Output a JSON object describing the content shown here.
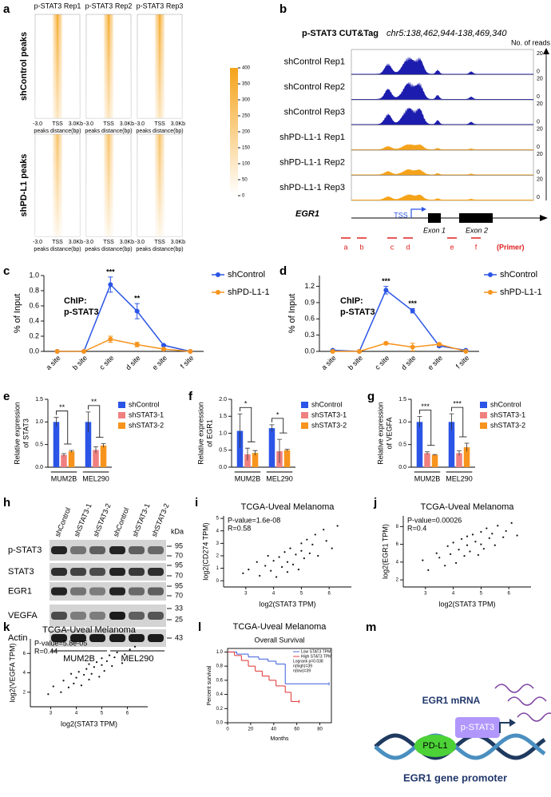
{
  "panel_a": {
    "panel_label": "a",
    "columns": [
      "p-STAT3 Rep1",
      "p-STAT3 Rep2",
      "p-STAT3 Rep3"
    ],
    "rows": [
      "shControl peaks",
      "shPD-L1 peaks"
    ],
    "x_labels": [
      "-3.0",
      "TSS",
      "3.0Kb"
    ],
    "x_title": "peaks distance(bp)",
    "colorbar": {
      "lim": [
        0,
        400
      ],
      "ticks": [
        0,
        50,
        100,
        150,
        200,
        250,
        300,
        350,
        400
      ],
      "colors": [
        "#ffffff",
        "#f5a31a"
      ]
    }
  },
  "panel_b": {
    "panel_label": "b",
    "title": "p-STAT3 CUT&Tag",
    "locus": "chr5:138,462,944-138,469,340",
    "scale_title": "No. of reads",
    "track_range": [
      0,
      20
    ],
    "tracks": [
      {
        "name": "shControl Rep1",
        "color": "#1c1cae"
      },
      {
        "name": "shControl Rep2",
        "color": "#1c1cae"
      },
      {
        "name": "shControl Rep3",
        "color": "#1c1cae"
      },
      {
        "name": "shPD-L1-1 Rep1",
        "color": "#f5a31a"
      },
      {
        "name": "shPD-L1-1 Rep2",
        "color": "#f5a31a"
      },
      {
        "name": "shPD-L1-1 Rep3",
        "color": "#f5a31a"
      }
    ],
    "gene": "EGR1",
    "tss": "TSS",
    "exons": [
      "Exon 1",
      "Exon 2"
    ],
    "primers": [
      "a",
      "b",
      "c",
      "d",
      "e",
      "f"
    ],
    "primer_title": "(Primer)"
  },
  "panel_h": {
    "panel_label": "h",
    "lanes": [
      "shControl",
      "shSTAT3-1",
      "shSTAT3-2",
      "shControl",
      "shSTAT3-1",
      "shSTAT3-2"
    ],
    "kda": "kDa",
    "rows": [
      "p-STAT3",
      "STAT3",
      "EGR1",
      "VEGFA",
      "Actin"
    ],
    "markers": [
      95,
      70,
      95,
      70,
      95,
      70,
      33,
      25,
      43
    ],
    "groups": [
      "MUM2B",
      "MEL290"
    ]
  },
  "panel_m": {
    "panel_label": "m",
    "mrna": "EGR1 mRNA",
    "proteins": [
      "PD-L1",
      "p-STAT3"
    ],
    "promoter": "EGR1 gene promoter"
  },
  "chart_data": [
    {
      "panel_label": "c",
      "type": "line",
      "title": [
        "ChIP:",
        "p-STAT3"
      ],
      "y_label": [
        "% of Input"
      ],
      "categories": [
        "a site",
        "b site",
        "c site",
        "d site",
        "e site",
        "f site"
      ],
      "series": [
        {
          "name": "shControl",
          "color": "#2b55e6",
          "values": [
            0,
            0,
            0.88,
            0.53,
            0.08,
            0
          ],
          "errors": [
            0,
            0,
            0.1,
            0.1,
            0.01,
            0
          ]
        },
        {
          "name": "shPD-L1-1",
          "color": "#f7941d",
          "values": [
            0,
            0,
            0.16,
            0.09,
            0.03,
            0
          ],
          "errors": [
            0,
            0,
            0.04,
            0.03,
            0.01,
            0
          ]
        }
      ],
      "ylim": [
        0,
        1.0
      ],
      "yticks": [
        {
          "value": 0,
          "label": "0.0"
        },
        0.2,
        0.4,
        0.6,
        0.8,
        {
          "value": 1,
          "label": "1.0"
        }
      ],
      "annotations": [
        {
          "text": "***",
          "x": "c site"
        },
        {
          "text": "**",
          "x": "d site"
        }
      ]
    },
    {
      "panel_label": "d",
      "type": "line",
      "title": [
        "ChIP:",
        "p-STAT3"
      ],
      "y_label": [
        "% of Input"
      ],
      "categories": [
        "a site",
        "b site",
        "c site",
        "d site",
        "e site",
        "f site"
      ],
      "series": [
        {
          "name": "shControl",
          "color": "#2b55e6",
          "values": [
            0.02,
            0,
            1.13,
            0.75,
            0.1,
            0.02
          ],
          "errors": [
            0.01,
            0,
            0.07,
            0.04,
            0.02,
            0.01
          ]
        },
        {
          "name": "shPD-L1-1",
          "color": "#f7941d",
          "values": [
            0,
            0,
            0.15,
            0.08,
            0.13,
            0
          ],
          "errors": [
            0,
            0,
            0.02,
            0.07,
            0.02,
            0
          ]
        }
      ],
      "ylim": [
        0,
        1.4
      ],
      "yticks": [
        {
          "value": 0,
          "label": "0.0"
        },
        0.3,
        0.6,
        0.9,
        1.2
      ],
      "annotations": [
        {
          "text": "***",
          "x": "c site"
        },
        {
          "text": "***",
          "x": "d site"
        }
      ]
    },
    {
      "panel_label": "e",
      "type": "bar",
      "y_label": [
        "Relative expression",
        "of STAT3"
      ],
      "categories": [
        "MUM2B",
        "MEL290"
      ],
      "series": [
        {
          "name": "shControl",
          "color": "#2b55e6",
          "values": [
            1.0,
            1.0
          ],
          "errors": [
            0.1,
            0.22
          ]
        },
        {
          "name": "shSTAT3-1",
          "color": "#f08080",
          "values": [
            0.27,
            0.38
          ],
          "errors": [
            0.03,
            0.07
          ]
        },
        {
          "name": "shSTAT3-2",
          "color": "#f7941d",
          "values": [
            0.35,
            0.48
          ],
          "errors": [
            0.02,
            0.04
          ]
        }
      ],
      "ylim": [
        0,
        1.5
      ],
      "yticks": [
        {
          "value": 0,
          "label": "0.0"
        },
        0.5,
        {
          "value": 1,
          "label": "1.0"
        },
        1.5
      ],
      "annotations": [
        {
          "text": "**",
          "x": "MUM2B"
        },
        {
          "text": "**",
          "x": "MEL290"
        }
      ]
    },
    {
      "panel_label": "f",
      "type": "bar",
      "y_label": [
        "Relative expression",
        "of EGR1"
      ],
      "categories": [
        "MUM2B",
        "MEL290"
      ],
      "series": [
        {
          "name": "shControl",
          "color": "#2b55e6",
          "values": [
            1.07,
            1.15
          ],
          "errors": [
            0.5,
            0.1
          ]
        },
        {
          "name": "shSTAT3-1",
          "color": "#f08080",
          "values": [
            0.38,
            0.47
          ],
          "errors": [
            0.18,
            0.35
          ]
        },
        {
          "name": "shSTAT3-2",
          "color": "#f7941d",
          "values": [
            0.42,
            0.5
          ],
          "errors": [
            0.07,
            0.03
          ]
        }
      ],
      "ylim": [
        0,
        2.0
      ],
      "yticks": [
        {
          "value": 0,
          "label": "0.0"
        },
        0.5,
        {
          "value": 1,
          "label": "1.0"
        },
        1.5,
        {
          "value": 2,
          "label": "2.0"
        }
      ],
      "annotations": [
        {
          "text": "*",
          "x": "MUM2B"
        },
        {
          "text": "*",
          "x": "MEL290"
        }
      ]
    },
    {
      "panel_label": "g",
      "type": "bar",
      "y_label": [
        "Relative expression",
        "of VEGFA"
      ],
      "categories": [
        "MUM2B",
        "MEL290"
      ],
      "series": [
        {
          "name": "shControl",
          "color": "#2b55e6",
          "values": [
            1.0,
            1.0
          ],
          "errors": [
            0.12,
            0.18
          ]
        },
        {
          "name": "shSTAT3-1",
          "color": "#f08080",
          "values": [
            0.31,
            0.31
          ],
          "errors": [
            0.03,
            0.05
          ]
        },
        {
          "name": "shSTAT3-2",
          "color": "#f7941d",
          "values": [
            0.27,
            0.44
          ],
          "errors": [
            0.01,
            0.09
          ]
        }
      ],
      "ylim": [
        0,
        1.5
      ],
      "yticks": [
        {
          "value": 0,
          "label": "0.0"
        },
        0.5,
        {
          "value": 1,
          "label": "1.0"
        },
        1.5
      ],
      "annotations": [
        {
          "text": "***",
          "x": "MUM2B"
        },
        {
          "text": "***",
          "x": "MEL290"
        }
      ]
    },
    {
      "panel_label": "i",
      "type": "scatter",
      "title": "TCGA-Uveal Melanoma",
      "annotations": [
        "P-value=1.6e-08",
        "R=0.58"
      ],
      "x_label": "log2(STAT3 TPM)",
      "y_label": "log2(CD274 TPM)",
      "color": "#111111",
      "x": [
        2.9,
        3.1,
        3.4,
        3.5,
        3.7,
        3.8,
        3.9,
        4.0,
        4.1,
        4.2,
        4.3,
        4.4,
        4.5,
        4.5,
        4.6,
        4.7,
        4.8,
        4.9,
        5.0,
        5.0,
        5.1,
        5.2,
        5.3,
        5.4,
        5.5,
        5.6,
        5.8,
        5.9,
        6.1,
        6.3
      ],
      "values": [
        0.6,
        0.9,
        1.5,
        0.4,
        1.2,
        2.0,
        0.8,
        1.6,
        0.3,
        1.9,
        1.1,
        2.3,
        0.7,
        1.5,
        2.6,
        1.3,
        2.1,
        0.9,
        2.4,
        3.0,
        1.8,
        3.3,
        2.2,
        2.9,
        3.7,
        2.0,
        4.1,
        3.2,
        2.6,
        4.4
      ],
      "xlim": [
        2.2,
        6.8
      ],
      "xticks": [
        3,
        4,
        5,
        6
      ],
      "ylim": [
        -0.5,
        5.2
      ],
      "yticks": [
        0,
        1,
        2,
        3,
        4,
        5
      ]
    },
    {
      "panel_label": "j",
      "type": "scatter",
      "title": "TCGA-Uveal Melanoma",
      "annotations": [
        "P-value=0.00026",
        "R=0.4"
      ],
      "x_label": "log2(STAT3 TPM)",
      "y_label": "log2(EGR1 TPM)",
      "color": "#111111",
      "x": [
        2.9,
        3.1,
        3.4,
        3.5,
        3.7,
        3.8,
        3.9,
        4.0,
        4.1,
        4.2,
        4.3,
        4.4,
        4.5,
        4.5,
        4.6,
        4.7,
        4.8,
        4.9,
        5.0,
        5.0,
        5.1,
        5.2,
        5.3,
        5.4,
        5.5,
        5.6,
        5.8,
        5.9,
        6.1,
        6.3
      ],
      "values": [
        4.2,
        3.1,
        5.0,
        4.5,
        3.6,
        5.8,
        4.9,
        6.2,
        3.9,
        5.4,
        6.6,
        4.7,
        5.9,
        6.9,
        5.2,
        7.1,
        6.3,
        4.8,
        7.4,
        6.0,
        5.5,
        7.8,
        6.7,
        7.2,
        5.9,
        8.1,
        6.8,
        7.5,
        8.4,
        7.0
      ],
      "xlim": [
        2.2,
        6.8
      ],
      "xticks": [
        3,
        4,
        5,
        6
      ],
      "ylim": [
        1.2,
        9.2
      ],
      "yticks": [
        2,
        4,
        6,
        8
      ]
    },
    {
      "panel_label": "k",
      "type": "scatter",
      "title": "TCGA-Uveal Melanoma",
      "annotations": [
        "P-value=5.8e-05",
        "R=0.44"
      ],
      "x_label": "log2(STAT3 TPM)",
      "y_label": "log2(VEGFA TPM)",
      "color": "#111111",
      "x": [
        2.9,
        3.1,
        3.4,
        3.5,
        3.7,
        3.8,
        3.9,
        4.0,
        4.1,
        4.2,
        4.3,
        4.4,
        4.5,
        4.5,
        4.6,
        4.7,
        4.8,
        4.9,
        5.0,
        5.0,
        5.1,
        5.2,
        5.3,
        5.4,
        5.5,
        5.6,
        5.8,
        5.9,
        6.1,
        6.3
      ],
      "values": [
        1.8,
        2.6,
        2.0,
        3.2,
        2.5,
        3.9,
        2.9,
        3.5,
        4.1,
        2.7,
        3.8,
        4.4,
        3.3,
        4.9,
        3.9,
        4.6,
        5.1,
        3.6,
        4.8,
        5.5,
        4.2,
        5.2,
        5.8,
        4.7,
        5.6,
        6.1,
        5.0,
        5.9,
        6.4,
        6.7
      ],
      "xlim": [
        2.2,
        6.8
      ],
      "xticks": [
        3,
        4,
        5,
        6
      ],
      "ylim": [
        0.5,
        7.5
      ],
      "yticks": [
        2,
        4,
        6
      ]
    },
    {
      "panel_label": "l",
      "type": "survival",
      "title": "TCGA-Uveal Melanoma",
      "subtitle": "Overall Survival",
      "x_label": "Months",
      "y_label": "Percent survival",
      "series": [
        {
          "name": "Low STAT3 TPM",
          "color": "#3b5bdb",
          "x": [
            0,
            8,
            18,
            27,
            35,
            42,
            50,
            88
          ],
          "values": [
            1,
            0.97,
            0.93,
            0.9,
            0.87,
            0.83,
            0.55,
            0.55
          ]
        },
        {
          "name": "High STAT3 TPM",
          "color": "#e03131",
          "x": [
            0,
            6,
            12,
            18,
            24,
            30,
            36,
            42,
            50,
            55,
            62
          ],
          "values": [
            1,
            0.95,
            0.88,
            0.8,
            0.73,
            0.66,
            0.6,
            0.52,
            0.43,
            0.3,
            0.3
          ]
        }
      ],
      "annotations": [
        "Logrank p=0.038",
        "n(high)=39",
        "n(low)=39"
      ],
      "xlim": [
        0,
        90
      ],
      "xticks": [
        0,
        20,
        40,
        60,
        80
      ],
      "ylim": [
        0,
        1.05
      ],
      "yticks": [
        {
          "value": 0,
          "label": "0.0"
        },
        0.2,
        0.4,
        0.6,
        0.8,
        {
          "value": 1,
          "label": "1.0"
        }
      ]
    }
  ]
}
